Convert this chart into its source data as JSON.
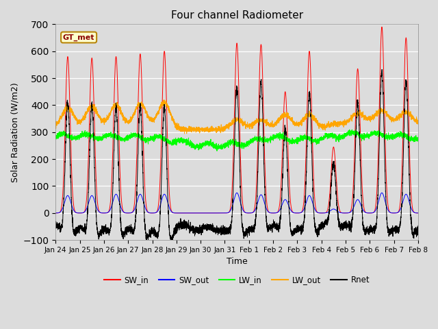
{
  "title": "Four channel Radiometer",
  "xlabel": "Time",
  "ylabel": "Solar Radiation (W/m2)",
  "ylim": [
    -100,
    700
  ],
  "background_color": "#dcdcdc",
  "plot_bg_color": "#dcdcdc",
  "legend_labels": [
    "SW_in",
    "SW_out",
    "LW_in",
    "LW_out",
    "Rnet"
  ],
  "legend_colors": [
    "red",
    "blue",
    "green",
    "orange",
    "black"
  ],
  "xtick_labels": [
    "Jan 24",
    "Jan 25",
    "Jan 26",
    "Jan 27",
    "Jan 28",
    "Jan 29",
    "Jan 30",
    "Jan 31",
    "Feb 1",
    "Feb 2",
    "Feb 3",
    "Feb 4",
    "Feb 5",
    "Feb 6",
    "Feb 7",
    "Feb 8"
  ],
  "ytick_values": [
    -100,
    0,
    100,
    200,
    300,
    400,
    500,
    600,
    700
  ],
  "annotation_text": "GT_met",
  "sw_in_peaks": [
    580,
    575,
    580,
    590,
    600,
    0,
    0,
    630,
    625,
    450,
    600,
    245,
    535,
    690,
    650,
    0
  ],
  "sw_out_peaks": [
    65,
    65,
    70,
    70,
    70,
    0,
    0,
    75,
    68,
    50,
    65,
    15,
    50,
    75,
    70,
    0
  ],
  "lw_in_base": 265,
  "lw_out_base": 320,
  "night_rnet": -75
}
